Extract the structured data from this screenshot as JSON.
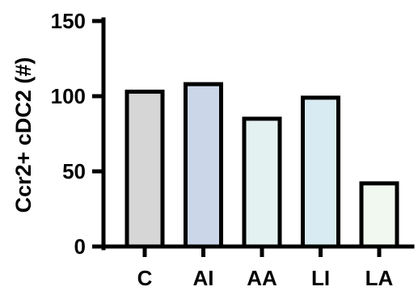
{
  "chart_data": {
    "type": "bar",
    "title": "",
    "xlabel": "",
    "ylabel": "Ccr2+ cDC2 (#)",
    "categories": [
      "C",
      "AI",
      "AA",
      "LI",
      "LA"
    ],
    "values": [
      103,
      108,
      85,
      99,
      42
    ],
    "ylim": [
      0,
      150
    ],
    "yticks": [
      0,
      50,
      100,
      150
    ],
    "ytick_labels": [
      "0",
      "50",
      "100",
      "150"
    ],
    "grid": false,
    "legend": "none",
    "bar_colors": [
      "#d6d6d6",
      "#cbd7e8",
      "#e3f2f0",
      "#d8ebf2",
      "#f1f8ef"
    ],
    "edge_color": "#000000"
  }
}
